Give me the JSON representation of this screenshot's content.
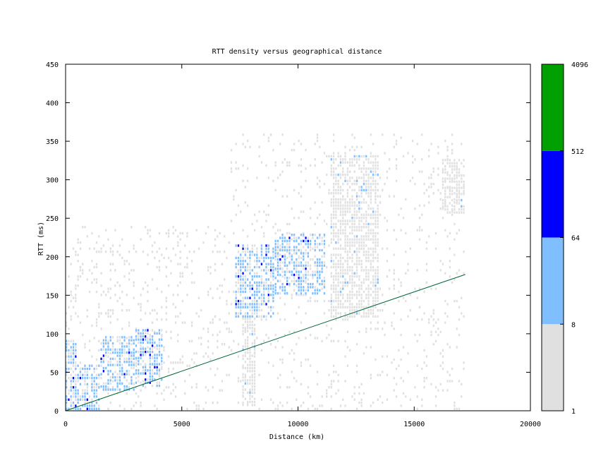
{
  "chart_data": {
    "type": "heatmap",
    "title": "RTT density versus geographical distance",
    "xlabel": "Distance (km)",
    "ylabel": "RTT (ms)",
    "xlim": [
      0,
      20000
    ],
    "ylim": [
      0,
      450
    ],
    "x_ticks": [
      0,
      5000,
      10000,
      15000,
      20000
    ],
    "y_ticks": [
      0,
      50,
      100,
      150,
      200,
      250,
      300,
      350,
      400,
      450
    ],
    "colorbar": {
      "scale": "log",
      "ticks": [
        1,
        8,
        64,
        512,
        4096
      ],
      "bins": [
        {
          "from": 1,
          "to": 8,
          "color": "#e0e0e0"
        },
        {
          "from": 8,
          "to": 64,
          "color": "#80bfff"
        },
        {
          "from": 64,
          "to": 512,
          "color": "#0000ff"
        },
        {
          "from": 512,
          "to": 4096,
          "color": "#00a000"
        }
      ]
    },
    "reference_line": {
      "color": "#006837",
      "points": [
        [
          0,
          0
        ],
        [
          17200,
          177
        ]
      ]
    },
    "density_clusters": [
      {
        "x": [
          0,
          500
        ],
        "y": [
          0,
          90
        ],
        "level": 2,
        "dense_level": 3
      },
      {
        "x": [
          500,
          1500
        ],
        "y": [
          0,
          60
        ],
        "level": 2,
        "dense_level": 3
      },
      {
        "x": [
          1500,
          3000
        ],
        "y": [
          25,
          95
        ],
        "level": 2,
        "dense_level": 3
      },
      {
        "x": [
          3000,
          4200
        ],
        "y": [
          30,
          105
        ],
        "level": 2,
        "dense_level": 3
      },
      {
        "x": [
          7300,
          9000
        ],
        "y": [
          120,
          215
        ],
        "level": 2,
        "dense_level": 3
      },
      {
        "x": [
          9000,
          11200
        ],
        "y": [
          150,
          230
        ],
        "level": 2,
        "dense_level": 3
      },
      {
        "x": [
          7600,
          8200
        ],
        "y": [
          5,
          120
        ],
        "level": 1,
        "dense_level": 2
      },
      {
        "x": [
          16200,
          17200
        ],
        "y": [
          255,
          325
        ],
        "level": 1,
        "dense_level": 2
      },
      {
        "x": [
          11400,
          13500
        ],
        "y": [
          120,
          330
        ],
        "level": 1,
        "dense_level": 2
      }
    ]
  }
}
